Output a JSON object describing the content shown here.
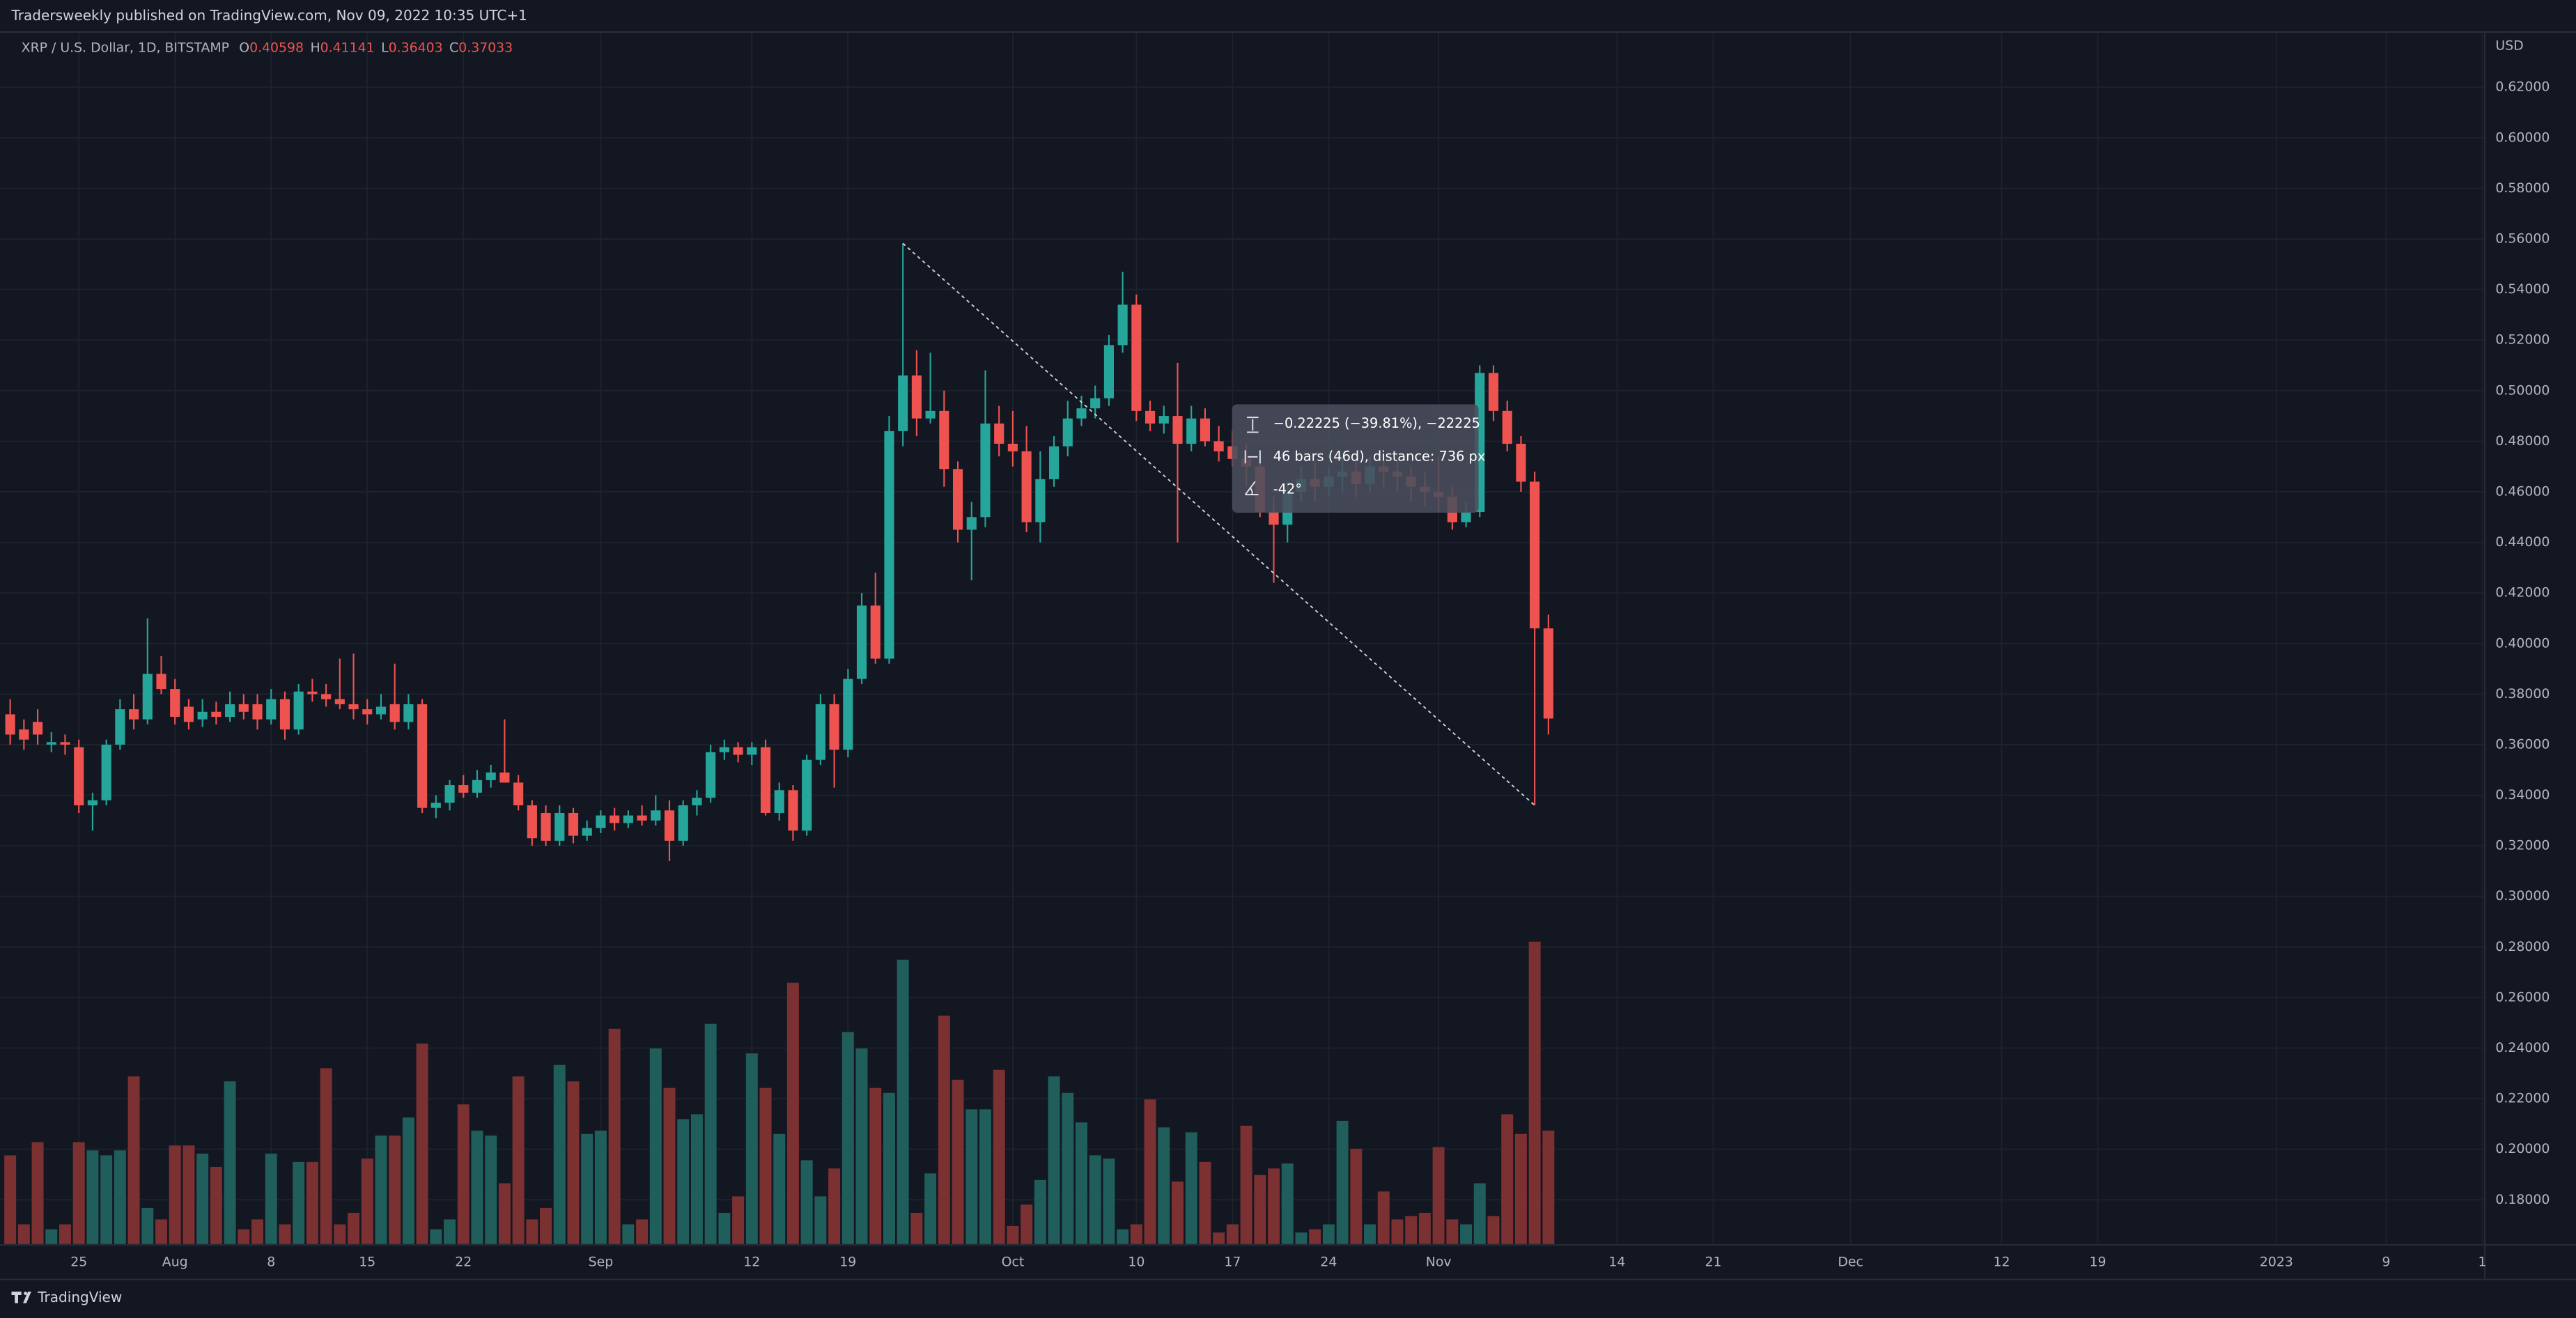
{
  "header": {
    "published": "Tradersweekly published on TradingView.com, Nov 09, 2022 10:35 UTC+1"
  },
  "footer": {
    "brand": "TradingView"
  },
  "chart_data": {
    "type": "candlestick",
    "title": "XRP / U.S. Dollar, 1D, BITSTAMP",
    "ohlc_labels": [
      "O",
      "H",
      "L",
      "C"
    ],
    "y_label": "USD",
    "categories": [
      null,
      null,
      null,
      null,
      null,
      "25",
      null,
      null,
      null,
      null,
      null,
      null,
      "Aug",
      null,
      null,
      null,
      null,
      null,
      null,
      "8",
      null,
      null,
      null,
      null,
      null,
      null,
      "15",
      null,
      null,
      null,
      null,
      null,
      null,
      "22",
      null,
      null,
      null,
      null,
      null,
      null,
      null,
      null,
      null,
      "Sep",
      null,
      null,
      null,
      null,
      null,
      null,
      null,
      null,
      null,
      null,
      "12",
      null,
      null,
      null,
      null,
      null,
      null,
      "19",
      null,
      null,
      null,
      null,
      null,
      null,
      null,
      null,
      null,
      null,
      null,
      "Oct",
      null,
      null,
      null,
      null,
      null,
      null,
      null,
      null,
      "10",
      null,
      null,
      null,
      null,
      null,
      null,
      "17",
      null,
      null,
      null,
      null,
      null,
      null,
      "24",
      null,
      null,
      null,
      null,
      null,
      null,
      null,
      "Nov",
      null,
      null,
      null,
      null,
      null,
      null,
      null,
      null,
      null,
      null,
      null,
      null,
      "14",
      null,
      null,
      null,
      null,
      null,
      null,
      "21",
      null,
      null,
      null,
      null,
      null,
      null,
      null,
      null,
      null,
      "Dec",
      null,
      null,
      null,
      null,
      null,
      null,
      null,
      null,
      null,
      null,
      "12",
      null,
      null,
      null,
      null,
      null,
      null,
      "19",
      null,
      null,
      null,
      null,
      null,
      null,
      null,
      null,
      null,
      null,
      null,
      null,
      "2023",
      null,
      null,
      null,
      null,
      null,
      null,
      null,
      "9",
      null,
      null,
      null,
      null,
      null,
      null,
      "1"
    ],
    "open": [
      0.372,
      0.366,
      0.369,
      0.36,
      0.361,
      0.359,
      0.336,
      0.338,
      0.36,
      0.374,
      0.37,
      0.388,
      0.382,
      0.375,
      0.37,
      0.373,
      0.371,
      0.376,
      0.376,
      0.37,
      0.378,
      0.366,
      0.381,
      0.38,
      0.378,
      0.376,
      0.374,
      0.372,
      0.376,
      0.369,
      0.376,
      0.335,
      0.337,
      0.344,
      0.341,
      0.346,
      0.349,
      0.345,
      0.336,
      0.333,
      0.322,
      0.333,
      0.324,
      0.327,
      0.332,
      0.329,
      0.332,
      0.33,
      0.334,
      0.322,
      0.336,
      0.339,
      0.357,
      0.359,
      0.356,
      0.359,
      0.333,
      0.342,
      0.326,
      0.354,
      0.376,
      0.358,
      0.386,
      0.415,
      0.394,
      0.484,
      0.506,
      0.489,
      0.492,
      0.469,
      0.445,
      0.45,
      0.487,
      0.479,
      0.476,
      0.448,
      0.465,
      0.478,
      0.489,
      0.493,
      0.497,
      0.518,
      0.534,
      0.492,
      0.487,
      0.49,
      0.479,
      0.489,
      0.48,
      0.478,
      0.473,
      0.47,
      0.452,
      0.447,
      0.46,
      0.465,
      0.462,
      0.466,
      0.468,
      0.463,
      0.47,
      0.468,
      0.466,
      0.462,
      0.46,
      0.458,
      0.448,
      0.452,
      0.507,
      0.492,
      0.479,
      0.464,
      0.40598,
      null,
      null,
      null,
      null,
      null,
      null,
      null,
      null,
      null,
      null,
      null,
      null,
      null,
      null,
      null,
      null,
      null,
      null,
      null,
      null,
      null,
      null,
      null,
      null,
      null,
      null,
      null,
      null,
      null,
      null,
      null,
      null,
      null,
      null,
      null,
      null,
      null,
      null,
      null,
      null,
      null,
      null,
      null,
      null,
      null,
      null,
      null,
      null,
      null,
      null,
      null,
      null,
      null,
      null,
      null,
      null,
      null,
      null,
      null,
      null,
      null,
      null,
      null,
      null,
      null,
      null,
      null,
      null
    ],
    "high": [
      0.378,
      0.37,
      0.374,
      0.365,
      0.364,
      0.362,
      0.341,
      0.362,
      0.378,
      0.38,
      0.41,
      0.395,
      0.386,
      0.378,
      0.378,
      0.377,
      0.381,
      0.38,
      0.38,
      0.382,
      0.381,
      0.384,
      0.386,
      0.384,
      0.394,
      0.396,
      0.378,
      0.38,
      0.392,
      0.38,
      0.378,
      0.34,
      0.346,
      0.348,
      0.35,
      0.352,
      0.37,
      0.348,
      0.338,
      0.336,
      0.336,
      0.335,
      0.33,
      0.334,
      0.335,
      0.334,
      0.336,
      0.34,
      0.338,
      0.338,
      0.342,
      0.36,
      0.362,
      0.361,
      0.361,
      0.362,
      0.345,
      0.344,
      0.356,
      0.38,
      0.38,
      0.39,
      0.42,
      0.428,
      0.49,
      0.55825,
      0.516,
      0.515,
      0.5,
      0.472,
      0.456,
      0.508,
      0.494,
      0.492,
      0.486,
      0.476,
      0.482,
      0.496,
      0.498,
      0.502,
      0.522,
      0.547,
      0.538,
      0.496,
      0.494,
      0.511,
      0.494,
      0.493,
      0.486,
      0.484,
      0.479,
      0.474,
      0.458,
      0.464,
      0.47,
      0.472,
      0.47,
      0.474,
      0.472,
      0.474,
      0.475,
      0.472,
      0.47,
      0.468,
      0.474,
      0.462,
      0.456,
      0.51,
      0.51,
      0.496,
      0.482,
      0.468,
      0.41141,
      null,
      null,
      null,
      null,
      null,
      null,
      null,
      null,
      null,
      null,
      null,
      null,
      null,
      null,
      null,
      null,
      null,
      null,
      null,
      null,
      null,
      null,
      null,
      null,
      null,
      null,
      null,
      null,
      null,
      null,
      null,
      null,
      null,
      null,
      null,
      null,
      null,
      null,
      null,
      null,
      null,
      null,
      null,
      null,
      null,
      null,
      null,
      null,
      null,
      null,
      null,
      null,
      null,
      null,
      null,
      null,
      null,
      null,
      null,
      null,
      null,
      null,
      null,
      null,
      null,
      null,
      null,
      null
    ],
    "low": [
      0.36,
      0.358,
      0.36,
      0.357,
      0.356,
      0.333,
      0.326,
      0.336,
      0.358,
      0.366,
      0.368,
      0.38,
      0.368,
      0.366,
      0.367,
      0.368,
      0.369,
      0.37,
      0.366,
      0.368,
      0.362,
      0.364,
      0.377,
      0.375,
      0.374,
      0.37,
      0.368,
      0.37,
      0.366,
      0.366,
      0.333,
      0.331,
      0.334,
      0.339,
      0.339,
      0.343,
      0.345,
      0.334,
      0.32,
      0.32,
      0.32,
      0.321,
      0.322,
      0.325,
      0.326,
      0.327,
      0.328,
      0.328,
      0.314,
      0.32,
      0.332,
      0.337,
      0.354,
      0.353,
      0.352,
      0.332,
      0.33,
      0.322,
      0.324,
      0.352,
      0.343,
      0.355,
      0.384,
      0.392,
      0.392,
      0.478,
      0.482,
      0.487,
      0.462,
      0.44,
      0.425,
      0.446,
      0.474,
      0.47,
      0.444,
      0.44,
      0.462,
      0.474,
      0.486,
      0.489,
      0.494,
      0.515,
      0.488,
      0.484,
      0.483,
      0.44,
      0.476,
      0.478,
      0.472,
      0.47,
      0.462,
      0.45,
      0.424,
      0.44,
      0.456,
      0.456,
      0.458,
      0.46,
      0.458,
      0.46,
      0.462,
      0.46,
      0.456,
      0.454,
      0.452,
      0.445,
      0.446,
      0.45,
      0.488,
      0.476,
      0.46,
      0.336,
      0.36403,
      null,
      null,
      null,
      null,
      null,
      null,
      null,
      null,
      null,
      null,
      null,
      null,
      null,
      null,
      null,
      null,
      null,
      null,
      null,
      null,
      null,
      null,
      null,
      null,
      null,
      null,
      null,
      null,
      null,
      null,
      null,
      null,
      null,
      null,
      null,
      null,
      null,
      null,
      null,
      null,
      null,
      null,
      null,
      null,
      null,
      null,
      null,
      null,
      null,
      null,
      null,
      null,
      null,
      null,
      null,
      null,
      null,
      null,
      null,
      null,
      null,
      null,
      null,
      null,
      null,
      null,
      null,
      null
    ],
    "close": [
      0.364,
      0.362,
      0.364,
      0.361,
      0.36,
      0.336,
      0.338,
      0.36,
      0.374,
      0.37,
      0.388,
      0.382,
      0.371,
      0.369,
      0.373,
      0.371,
      0.376,
      0.373,
      0.37,
      0.378,
      0.366,
      0.381,
      0.38,
      0.378,
      0.376,
      0.374,
      0.372,
      0.375,
      0.369,
      0.376,
      0.335,
      0.337,
      0.344,
      0.341,
      0.346,
      0.349,
      0.345,
      0.336,
      0.323,
      0.322,
      0.333,
      0.324,
      0.327,
      0.332,
      0.329,
      0.332,
      0.33,
      0.334,
      0.322,
      0.336,
      0.339,
      0.357,
      0.359,
      0.356,
      0.359,
      0.333,
      0.342,
      0.326,
      0.354,
      0.376,
      0.358,
      0.386,
      0.415,
      0.394,
      0.484,
      0.506,
      0.489,
      0.492,
      0.469,
      0.445,
      0.45,
      0.487,
      0.479,
      0.476,
      0.448,
      0.465,
      0.478,
      0.489,
      0.493,
      0.497,
      0.518,
      0.534,
      0.492,
      0.487,
      0.49,
      0.479,
      0.489,
      0.48,
      0.476,
      0.473,
      0.47,
      0.452,
      0.447,
      0.46,
      0.465,
      0.462,
      0.466,
      0.468,
      0.463,
      0.47,
      0.468,
      0.466,
      0.462,
      0.46,
      0.458,
      0.448,
      0.452,
      0.507,
      0.492,
      0.479,
      0.464,
      0.406,
      0.37033,
      null,
      null,
      null,
      null,
      null,
      null,
      null,
      null,
      null,
      null,
      null,
      null,
      null,
      null,
      null,
      null,
      null,
      null,
      null,
      null,
      null,
      null,
      null,
      null,
      null,
      null,
      null,
      null,
      null,
      null,
      null,
      null,
      null,
      null,
      null,
      null,
      null,
      null,
      null,
      null,
      null,
      null,
      null,
      null,
      null,
      null,
      null,
      null,
      null,
      null,
      null,
      null,
      null,
      null,
      null,
      null,
      null,
      null,
      null,
      null,
      null,
      null,
      null,
      null,
      null,
      null,
      null,
      null
    ],
    "volume": [
      54,
      12,
      62,
      9,
      12,
      62,
      57,
      54,
      57,
      102,
      22,
      15,
      60,
      60,
      55,
      47,
      99,
      9,
      15,
      55,
      12,
      50,
      50,
      107,
      12,
      19,
      52,
      66,
      66,
      77,
      122,
      9,
      15,
      85,
      69,
      66,
      37,
      102,
      15,
      22,
      109,
      99,
      67,
      69,
      131,
      12,
      15,
      119,
      95,
      76,
      79,
      134,
      19,
      29,
      116,
      95,
      67,
      159,
      51,
      29,
      46,
      129,
      119,
      95,
      92,
      173,
      19,
      43,
      139,
      100,
      82,
      82,
      106,
      11,
      24,
      39,
      102,
      92,
      74,
      54,
      52,
      9,
      12,
      88,
      71,
      38,
      68,
      50,
      7,
      12,
      72,
      42,
      46,
      49,
      7,
      9,
      12,
      75,
      58,
      12,
      32,
      15,
      17,
      19,
      59,
      15,
      12,
      37,
      17,
      79,
      67,
      184,
      69,
      null,
      null,
      null,
      null,
      null,
      null,
      null,
      null,
      null,
      null,
      null,
      null,
      null,
      null,
      null,
      null,
      null,
      null,
      null,
      null,
      null,
      null,
      null,
      null,
      null,
      null,
      null,
      null,
      null,
      null,
      null,
      null,
      null,
      null,
      null,
      null,
      null,
      null,
      null,
      null,
      null,
      null,
      null,
      null,
      null,
      null,
      null,
      null,
      null,
      null,
      null,
      null,
      null,
      null,
      null,
      null,
      null,
      null,
      null,
      null,
      null,
      null,
      null,
      null,
      null,
      null,
      null,
      null
    ],
    "up_color": "#26a69a",
    "down_color": "#ef5350",
    "volume_up_color": "#1f5e5b",
    "volume_down_color": "#7b3032",
    "ylim": [
      0.1625,
      0.6415
    ],
    "yticks": [
      {
        "value": 0.18,
        "label": "0.18000"
      },
      {
        "value": 0.2,
        "label": "0.20000"
      },
      {
        "value": 0.22,
        "label": "0.22000"
      },
      {
        "value": 0.24,
        "label": "0.24000"
      },
      {
        "value": 0.26,
        "label": "0.26000"
      },
      {
        "value": 0.28,
        "label": "0.28000"
      },
      {
        "value": 0.3,
        "label": "0.30000"
      },
      {
        "value": 0.32,
        "label": "0.32000"
      },
      {
        "value": 0.34,
        "label": "0.34000"
      },
      {
        "value": 0.36,
        "label": "0.36000"
      },
      {
        "value": 0.38,
        "label": "0.38000"
      },
      {
        "value": 0.4,
        "label": "0.40000"
      },
      {
        "value": 0.42,
        "label": "0.42000"
      },
      {
        "value": 0.44,
        "label": "0.44000"
      },
      {
        "value": 0.46,
        "label": "0.46000"
      },
      {
        "value": 0.48,
        "label": "0.48000"
      },
      {
        "value": 0.5,
        "label": "0.50000"
      },
      {
        "value": 0.52,
        "label": "0.52000"
      },
      {
        "value": 0.54,
        "label": "0.54000"
      },
      {
        "value": 0.56,
        "label": "0.56000"
      },
      {
        "value": 0.58,
        "label": "0.58000"
      },
      {
        "value": 0.6,
        "label": "0.60000"
      },
      {
        "value": 0.62,
        "label": "0.62000"
      }
    ],
    "grid": true,
    "annotation": [
      "−0.22225 (−39.81%), −22225",
      "46 bars (46d), distance: 736 px",
      "-42°"
    ]
  }
}
